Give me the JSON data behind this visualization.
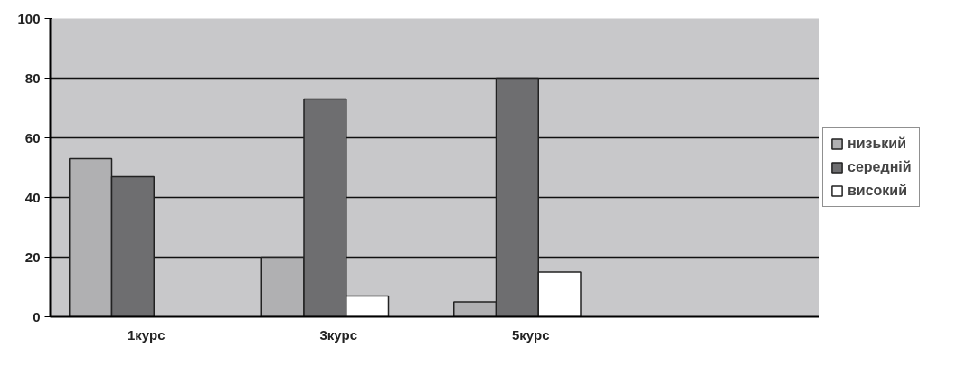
{
  "chart_data": {
    "type": "bar",
    "categories": [
      "1курс",
      "3курс",
      "5курс",
      null
    ],
    "series": [
      {
        "name": "низький",
        "color": "#b0b0b2",
        "values": [
          53,
          20,
          5,
          null
        ]
      },
      {
        "name": "середній",
        "color": "#6e6e70",
        "values": [
          47,
          73,
          80,
          null
        ]
      },
      {
        "name": "високий",
        "color": "#ffffff",
        "values": [
          null,
          7,
          15,
          null
        ]
      }
    ],
    "ylim": [
      0,
      100
    ],
    "yticks": [
      0,
      20,
      40,
      60,
      80,
      100
    ],
    "grid": "y",
    "legend": "right"
  }
}
